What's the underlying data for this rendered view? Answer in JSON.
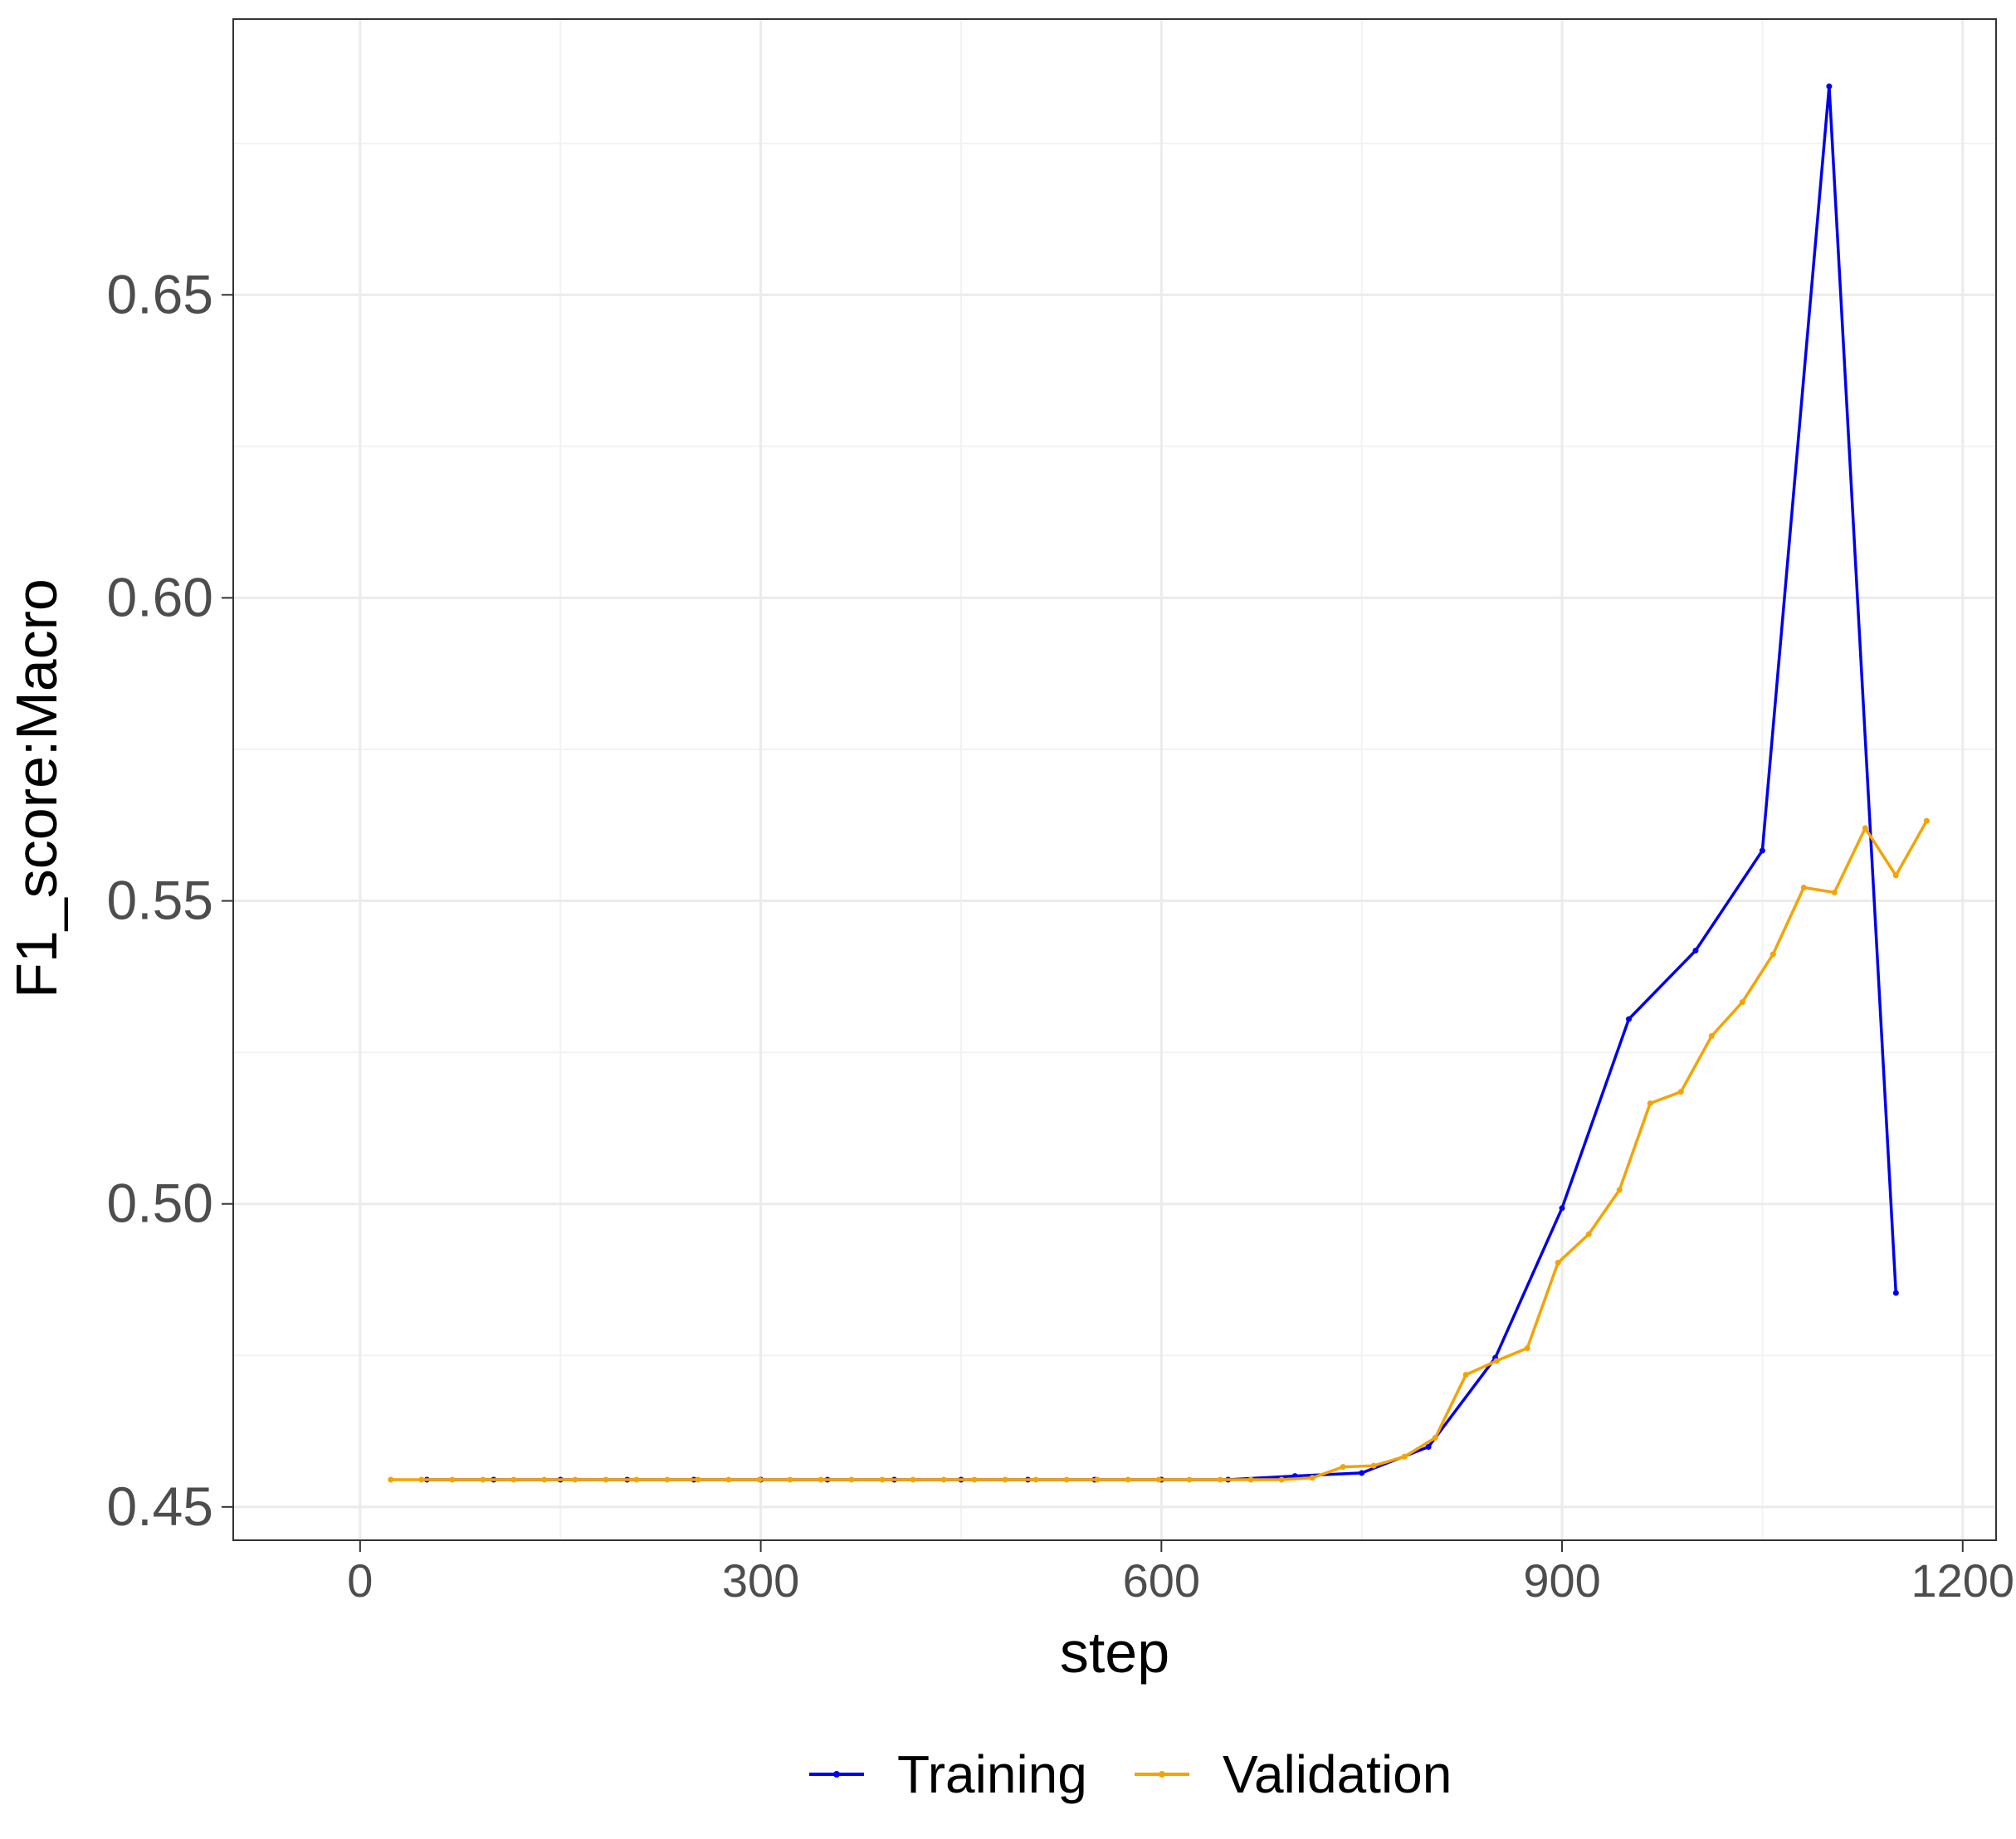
{
  "chart_data": {
    "type": "line",
    "title": "",
    "xlabel": "step",
    "ylabel": "F1_score:Macro",
    "xlim": [
      -95,
      1225
    ],
    "ylim": [
      0.4445,
      0.6955
    ],
    "x_ticks": [
      0,
      300,
      600,
      900,
      1200
    ],
    "x_tick_labels": [
      "0",
      "300",
      "600",
      "900",
      "1200"
    ],
    "y_ticks": [
      0.45,
      0.5,
      0.55,
      0.6,
      0.65
    ],
    "y_tick_labels": [
      "0.45",
      "0.50",
      "0.55",
      "0.60",
      "0.65"
    ],
    "grid": true,
    "legend_position": "bottom",
    "series": [
      {
        "name": "Training",
        "color": "#0000ee",
        "x": [
          50,
          100,
          150,
          200,
          250,
          300,
          350,
          400,
          450,
          500,
          550,
          600,
          650,
          700,
          750,
          800,
          850,
          900,
          950,
          1000,
          1050,
          1100,
          1150
        ],
        "y": [
          0.4545,
          0.4545,
          0.4545,
          0.4545,
          0.4545,
          0.4545,
          0.4545,
          0.4545,
          0.4545,
          0.4545,
          0.4545,
          0.4545,
          0.4545,
          0.4551,
          0.4556,
          0.4599,
          0.4746,
          0.4993,
          0.5305,
          0.5418,
          0.5583,
          0.6844,
          0.4853
        ]
      },
      {
        "name": "Validation",
        "color": "#f5a300",
        "x": [
          23,
          46,
          69,
          92,
          115,
          138,
          161,
          184,
          207,
          230,
          253,
          276,
          299,
          322,
          345,
          368,
          391,
          414,
          437,
          460,
          483,
          506,
          529,
          552,
          575,
          598,
          621,
          644,
          667,
          690,
          713,
          736,
          759,
          782,
          805,
          828,
          851,
          874,
          897,
          920,
          943,
          966,
          989,
          1012,
          1035,
          1058,
          1081,
          1104,
          1127,
          1150,
          1173
        ],
        "y": [
          0.4545,
          0.4545,
          0.4545,
          0.4545,
          0.4545,
          0.4545,
          0.4545,
          0.4545,
          0.4545,
          0.4545,
          0.4545,
          0.4545,
          0.4545,
          0.4545,
          0.4545,
          0.4545,
          0.4545,
          0.4545,
          0.4545,
          0.4545,
          0.4545,
          0.4545,
          0.4545,
          0.4545,
          0.4545,
          0.4545,
          0.4545,
          0.4545,
          0.4545,
          0.4545,
          0.4548,
          0.4566,
          0.4568,
          0.4583,
          0.4614,
          0.4718,
          0.4741,
          0.4762,
          0.4903,
          0.495,
          0.5023,
          0.5166,
          0.5185,
          0.5277,
          0.5333,
          0.5412,
          0.5522,
          0.5514,
          0.562,
          0.5542,
          0.5632
        ]
      }
    ]
  }
}
